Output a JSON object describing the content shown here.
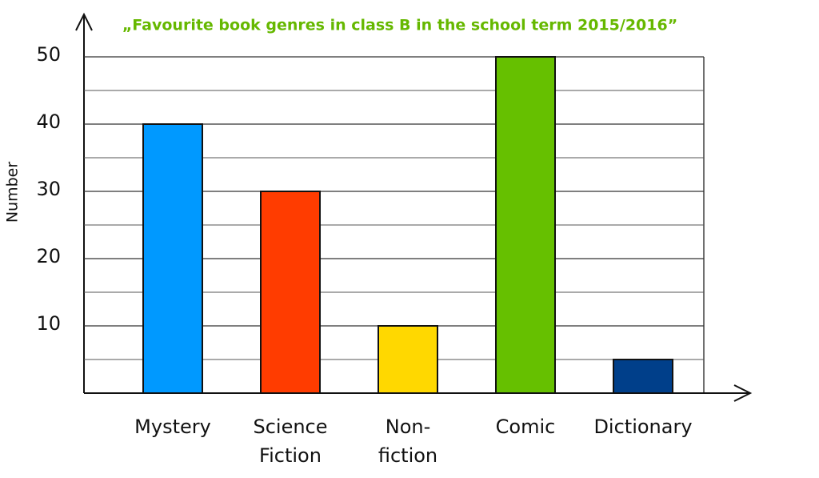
{
  "chart_data": {
    "type": "bar",
    "title": "„Favourite book genres in class B in the school term 2015/2016”",
    "y_label": "Number",
    "categories": [
      "Mystery",
      "Science\nFiction",
      "Non-\nfiction",
      "Comic",
      "Dictionary"
    ],
    "values": [
      40,
      30,
      10,
      50,
      5
    ],
    "colors": [
      "#0099ff",
      "#ff3c00",
      "#ffd800",
      "#66c000",
      "#003f8a"
    ],
    "ylim": [
      0,
      50
    ],
    "yticks": [
      10,
      20,
      30,
      40,
      50
    ],
    "minor_yticks": [
      5,
      15,
      25,
      35,
      45
    ],
    "grid": true
  }
}
